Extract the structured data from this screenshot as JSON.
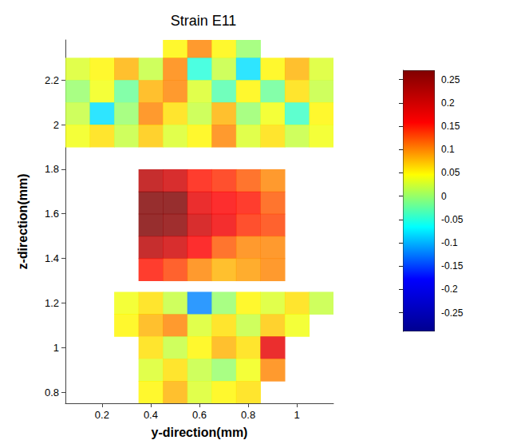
{
  "chart_data": {
    "type": "heatmap",
    "title": "Strain E11",
    "x_label": "y-direction(mm)",
    "y_label": "z-direction(mm)",
    "xlim": [
      0.05,
      1.15
    ],
    "ylim": [
      0.75,
      2.38
    ],
    "xticks": [
      0.2,
      0.4,
      0.6,
      0.8,
      1
    ],
    "yticks": [
      0.8,
      1,
      1.2,
      1.4,
      1.6,
      1.8,
      2,
      2.2
    ],
    "grid": false,
    "cells": [
      [
        0.5,
        2.35,
        0.05
      ],
      [
        0.6,
        2.35,
        0.1
      ],
      [
        0.7,
        2.35,
        0.05
      ],
      [
        0.8,
        2.35,
        0.0
      ],
      [
        0.1,
        2.25,
        0.03
      ],
      [
        0.2,
        2.25,
        0.05
      ],
      [
        0.3,
        2.25,
        0.08
      ],
      [
        0.4,
        2.25,
        0.02
      ],
      [
        0.5,
        2.25,
        0.1
      ],
      [
        0.6,
        2.25,
        -0.05
      ],
      [
        0.7,
        2.25,
        0.02
      ],
      [
        0.8,
        2.25,
        -0.08
      ],
      [
        0.9,
        2.25,
        0.05
      ],
      [
        1.0,
        2.25,
        0.08
      ],
      [
        1.1,
        2.25,
        0.03
      ],
      [
        0.1,
        2.15,
        0.0
      ],
      [
        0.2,
        2.15,
        0.04
      ],
      [
        0.3,
        2.15,
        -0.02
      ],
      [
        0.4,
        2.15,
        0.08
      ],
      [
        0.5,
        2.15,
        0.1
      ],
      [
        0.6,
        2.15,
        0.03
      ],
      [
        0.7,
        2.15,
        -0.03
      ],
      [
        0.8,
        2.15,
        0.05
      ],
      [
        0.9,
        2.15,
        -0.02
      ],
      [
        1.0,
        2.15,
        0.06
      ],
      [
        1.1,
        2.15,
        0.02
      ],
      [
        0.1,
        2.05,
        0.02
      ],
      [
        0.2,
        2.05,
        -0.08
      ],
      [
        0.3,
        2.05,
        0.0
      ],
      [
        0.4,
        2.05,
        0.1
      ],
      [
        0.5,
        2.05,
        0.06
      ],
      [
        0.6,
        2.05,
        0.02
      ],
      [
        0.7,
        2.05,
        0.08
      ],
      [
        0.8,
        2.05,
        0.0
      ],
      [
        0.9,
        2.05,
        0.04
      ],
      [
        1.0,
        2.05,
        -0.04
      ],
      [
        1.1,
        2.05,
        0.05
      ],
      [
        0.1,
        1.95,
        0.04
      ],
      [
        0.2,
        1.95,
        0.06
      ],
      [
        0.3,
        1.95,
        0.02
      ],
      [
        0.4,
        1.95,
        0.07
      ],
      [
        0.5,
        1.95,
        0.03
      ],
      [
        0.6,
        1.95,
        0.05
      ],
      [
        0.7,
        1.95,
        0.1
      ],
      [
        0.8,
        1.95,
        0.03
      ],
      [
        0.9,
        1.95,
        0.06
      ],
      [
        1.0,
        1.95,
        0.02
      ],
      [
        1.1,
        1.95,
        0.04
      ],
      [
        0.4,
        1.75,
        0.22
      ],
      [
        0.5,
        1.75,
        0.2
      ],
      [
        0.6,
        1.75,
        0.15
      ],
      [
        0.7,
        1.75,
        0.14
      ],
      [
        0.8,
        1.75,
        0.12
      ],
      [
        0.9,
        1.75,
        0.1
      ],
      [
        0.4,
        1.65,
        0.28
      ],
      [
        0.5,
        1.65,
        0.27
      ],
      [
        0.6,
        1.65,
        0.18
      ],
      [
        0.7,
        1.65,
        0.16
      ],
      [
        0.8,
        1.65,
        0.15
      ],
      [
        0.9,
        1.65,
        0.12
      ],
      [
        0.4,
        1.55,
        0.28
      ],
      [
        0.5,
        1.55,
        0.26
      ],
      [
        0.6,
        1.55,
        0.2
      ],
      [
        0.7,
        1.55,
        0.17
      ],
      [
        0.8,
        1.55,
        0.14
      ],
      [
        0.9,
        1.55,
        0.13
      ],
      [
        0.4,
        1.45,
        0.22
      ],
      [
        0.5,
        1.45,
        0.2
      ],
      [
        0.6,
        1.45,
        0.16
      ],
      [
        0.7,
        1.45,
        0.12
      ],
      [
        0.8,
        1.45,
        0.1
      ],
      [
        0.9,
        1.45,
        0.1
      ],
      [
        0.4,
        1.35,
        0.15
      ],
      [
        0.5,
        1.35,
        0.13
      ],
      [
        0.6,
        1.35,
        0.1
      ],
      [
        0.7,
        1.35,
        0.08
      ],
      [
        0.8,
        1.35,
        0.09
      ],
      [
        0.9,
        1.35,
        0.1
      ],
      [
        0.3,
        1.2,
        0.04
      ],
      [
        0.4,
        1.2,
        0.06
      ],
      [
        0.5,
        1.2,
        0.02
      ],
      [
        0.6,
        1.2,
        -0.12
      ],
      [
        0.7,
        1.2,
        0.0
      ],
      [
        0.8,
        1.2,
        0.05
      ],
      [
        0.9,
        1.2,
        0.03
      ],
      [
        1.0,
        1.2,
        0.06
      ],
      [
        1.1,
        1.2,
        0.02
      ],
      [
        0.3,
        1.1,
        0.05
      ],
      [
        0.4,
        1.1,
        0.08
      ],
      [
        0.5,
        1.1,
        0.1
      ],
      [
        0.6,
        1.1,
        0.03
      ],
      [
        0.7,
        1.1,
        0.06
      ],
      [
        0.8,
        1.1,
        0.02
      ],
      [
        0.9,
        1.1,
        0.07
      ],
      [
        1.0,
        1.1,
        0.04
      ],
      [
        0.4,
        1.0,
        0.06
      ],
      [
        0.5,
        1.0,
        0.02
      ],
      [
        0.6,
        1.0,
        0.05
      ],
      [
        0.7,
        1.0,
        0.08
      ],
      [
        0.8,
        1.0,
        0.06
      ],
      [
        0.9,
        1.0,
        0.18
      ],
      [
        0.4,
        0.9,
        0.03
      ],
      [
        0.5,
        0.9,
        0.06
      ],
      [
        0.6,
        0.9,
        0.02
      ],
      [
        0.7,
        0.9,
        0.0
      ],
      [
        0.8,
        0.9,
        0.04
      ],
      [
        0.9,
        0.9,
        0.1
      ],
      [
        0.4,
        0.8,
        0.05
      ],
      [
        0.5,
        0.8,
        0.08
      ],
      [
        0.6,
        0.8,
        0.03
      ],
      [
        0.7,
        0.8,
        0.05
      ],
      [
        0.8,
        0.8,
        0.06
      ]
    ],
    "colorbar": {
      "range": [
        -0.29,
        0.27
      ],
      "ticks": [
        -0.25,
        -0.2,
        -0.15,
        -0.1,
        -0.05,
        0,
        0.05,
        0.1,
        0.15,
        0.2,
        0.25
      ]
    }
  }
}
